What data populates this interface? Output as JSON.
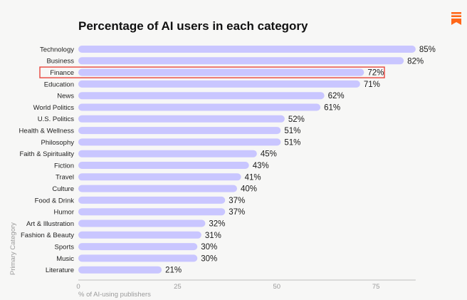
{
  "brand": {
    "icon": "substack-logo-icon",
    "color": "#ff6719"
  },
  "colors": {
    "bar": "#c9c6ff",
    "highlight": "#e8453c",
    "axis": "#bdbdbd"
  },
  "chart_data": {
    "type": "bar",
    "orientation": "horizontal",
    "title": "Percentage of AI users in each category",
    "xlabel": "% of AI-using publishers",
    "ylabel": "Primary Category",
    "xlim": [
      0,
      85
    ],
    "xticks": [
      0,
      25,
      50,
      75
    ],
    "grid": false,
    "highlight": "Finance",
    "categories": [
      "Technology",
      "Business",
      "Finance",
      "Education",
      "News",
      "World Politics",
      "U.S. Politics",
      "Health & Wellness",
      "Philosophy",
      "Faith & Spirituality",
      "Fiction",
      "Travel",
      "Culture",
      "Food & Drink",
      "Humor",
      "Art & Illustration",
      "Fashion & Beauty",
      "Sports",
      "Music",
      "Literature"
    ],
    "values": [
      85,
      82,
      72,
      71,
      62,
      61,
      52,
      51,
      51,
      45,
      43,
      41,
      40,
      37,
      37,
      32,
      31,
      30,
      30,
      21
    ],
    "value_labels": [
      "85%",
      "82%",
      "72%",
      "71%",
      "62%",
      "61%",
      "52%",
      "51%",
      "51%",
      "45%",
      "43%",
      "41%",
      "40%",
      "37%",
      "37%",
      "32%",
      "31%",
      "30%",
      "30%",
      "21%"
    ]
  }
}
